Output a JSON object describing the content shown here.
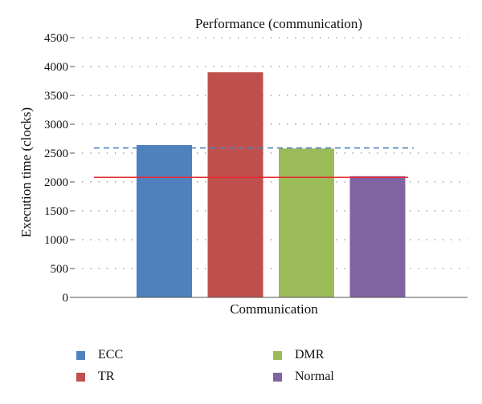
{
  "chart_data": {
    "type": "bar",
    "title": "Performance (communication)",
    "xlabel": "Communication",
    "ylabel": "Execution time (clocks)",
    "ylim": [
      0,
      4500
    ],
    "yticks": [
      0,
      500,
      1000,
      1500,
      2000,
      2500,
      3000,
      3500,
      4000,
      4500
    ],
    "grid": true,
    "legend_position": "bottom",
    "series": [
      {
        "name": "ECC",
        "value": 2640,
        "color": "#4f81bd"
      },
      {
        "name": "TR",
        "value": 3900,
        "color": "#c0504d"
      },
      {
        "name": "DMR",
        "value": 2580,
        "color": "#9bbb59"
      },
      {
        "name": "Normal",
        "value": 2100,
        "color": "#8064a2"
      }
    ],
    "reference_lines": [
      {
        "value": 2590,
        "style": "dashed",
        "color": "#4f81bd"
      },
      {
        "value": 2080,
        "style": "solid",
        "color": "#e8292f"
      }
    ]
  }
}
